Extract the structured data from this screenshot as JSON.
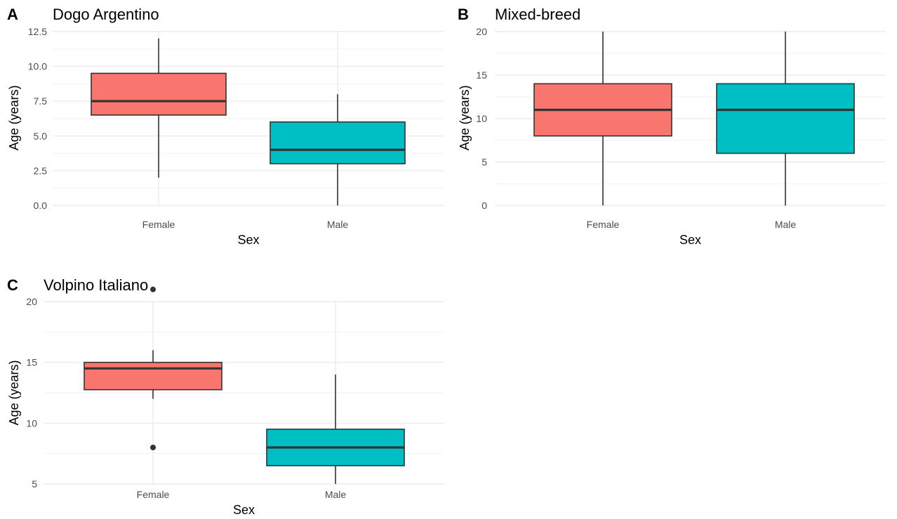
{
  "chart_data": [
    {
      "type": "box",
      "tag": "A",
      "title": "Dogo Argentino",
      "xlabel": "Sex",
      "ylabel": "Age (years)",
      "categories": [
        "Female",
        "Male"
      ],
      "yticks": [
        "0.0",
        "2.5",
        "5.0",
        "7.5",
        "10.0",
        "12.5"
      ],
      "ylim": [
        0,
        12.5
      ],
      "colors": [
        "#F8766D",
        "#00BFC4"
      ],
      "boxes": [
        {
          "category": "Female",
          "min": 2,
          "q1": 6.5,
          "median": 7.5,
          "q3": 9.5,
          "max": 12,
          "outliers": []
        },
        {
          "category": "Male",
          "min": 0,
          "q1": 3,
          "median": 4,
          "q3": 6,
          "max": 8,
          "outliers": []
        }
      ]
    },
    {
      "type": "box",
      "tag": "B",
      "title": "Mixed-breed",
      "xlabel": "Sex",
      "ylabel": "Age (years)",
      "categories": [
        "Female",
        "Male"
      ],
      "yticks": [
        "0",
        "5",
        "10",
        "15",
        "20"
      ],
      "ylim": [
        0,
        20
      ],
      "colors": [
        "#F8766D",
        "#00BFC4"
      ],
      "boxes": [
        {
          "category": "Female",
          "min": 0,
          "q1": 8,
          "median": 11,
          "q3": 14,
          "max": 20,
          "outliers": []
        },
        {
          "category": "Male",
          "min": 0,
          "q1": 6,
          "median": 11,
          "q3": 14,
          "max": 20,
          "outliers": []
        }
      ]
    },
    {
      "type": "box",
      "tag": "C",
      "title": "Volpino Italiano",
      "xlabel": "Sex",
      "ylabel": "Age (years)",
      "categories": [
        "Female",
        "Male"
      ],
      "yticks": [
        "5",
        "10",
        "15",
        "20"
      ],
      "ylim": [
        5,
        20
      ],
      "colors": [
        "#F8766D",
        "#00BFC4"
      ],
      "boxes": [
        {
          "category": "Female",
          "min": 12,
          "q1": 12.75,
          "median": 14.5,
          "q3": 15,
          "max": 16,
          "outliers": [
            8,
            21
          ]
        },
        {
          "category": "Male",
          "min": 5,
          "q1": 6.5,
          "median": 8,
          "q3": 9.5,
          "max": 14,
          "outliers": []
        }
      ]
    }
  ]
}
